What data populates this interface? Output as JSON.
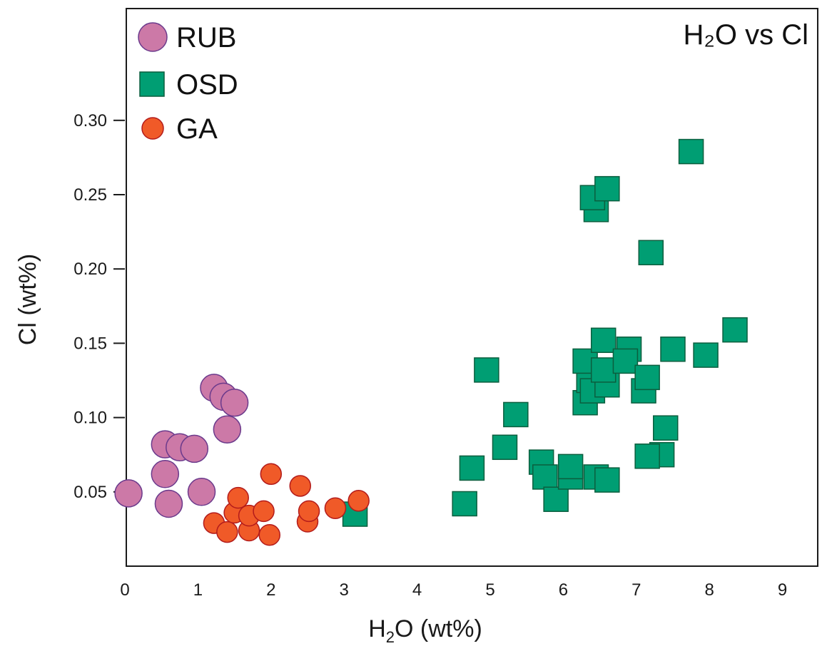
{
  "chart_data": {
    "type": "scatter",
    "title": "H₂O vs Cl",
    "xlabel_main": "H",
    "xlabel_sub": "2",
    "xlabel_rest": "O (wt%)",
    "ylabel": "Cl (wt%)",
    "xlim": [
      0,
      9.5
    ],
    "ylim": [
      0,
      0.37
    ],
    "xticks": [
      0,
      1,
      2,
      3,
      4,
      5,
      6,
      7,
      8,
      9
    ],
    "xtick_labels": [
      "0",
      "1",
      "2",
      "3",
      "4",
      "5",
      "6",
      "7",
      "8",
      "9"
    ],
    "yticks": [
      0.05,
      0.1,
      0.15,
      0.2,
      0.25,
      0.3
    ],
    "ytick_labels": [
      "0.05",
      "0.10",
      "0.15",
      "0.20",
      "0.25",
      "0.30"
    ],
    "legend_position": "top-left",
    "series": [
      {
        "name": "RUB",
        "marker": "circle",
        "fill": "#cc79a7",
        "stroke": "#6b3a8c",
        "points": [
          [
            0.05,
            0.049
          ],
          [
            0.55,
            0.082
          ],
          [
            0.55,
            0.062
          ],
          [
            0.6,
            0.042
          ],
          [
            0.75,
            0.08
          ],
          [
            0.95,
            0.079
          ],
          [
            1.05,
            0.05
          ],
          [
            1.22,
            0.12
          ],
          [
            1.35,
            0.114
          ],
          [
            1.5,
            0.11
          ],
          [
            1.4,
            0.092
          ]
        ]
      },
      {
        "name": "OSD",
        "marker": "square",
        "fill": "#009e73",
        "stroke": "#0b5e3e",
        "points": [
          [
            3.15,
            0.035
          ],
          [
            4.65,
            0.042
          ],
          [
            4.75,
            0.066
          ],
          [
            4.95,
            0.132
          ],
          [
            5.2,
            0.08
          ],
          [
            5.35,
            0.102
          ],
          [
            5.7,
            0.07
          ],
          [
            5.75,
            0.06
          ],
          [
            5.9,
            0.045
          ],
          [
            6.1,
            0.06
          ],
          [
            6.1,
            0.067
          ],
          [
            6.3,
            0.11
          ],
          [
            6.35,
            0.125
          ],
          [
            6.4,
            0.118
          ],
          [
            6.3,
            0.138
          ],
          [
            6.45,
            0.24
          ],
          [
            6.4,
            0.248
          ],
          [
            6.6,
            0.254
          ],
          [
            6.45,
            0.06
          ],
          [
            6.6,
            0.058
          ],
          [
            6.55,
            0.152
          ],
          [
            6.6,
            0.122
          ],
          [
            6.55,
            0.132
          ],
          [
            6.9,
            0.146
          ],
          [
            6.85,
            0.138
          ],
          [
            7.1,
            0.118
          ],
          [
            7.15,
            0.127
          ],
          [
            7.2,
            0.211
          ],
          [
            7.35,
            0.075
          ],
          [
            7.15,
            0.074
          ],
          [
            7.4,
            0.093
          ],
          [
            7.5,
            0.146
          ],
          [
            7.75,
            0.279
          ],
          [
            7.95,
            0.142
          ],
          [
            8.35,
            0.159
          ]
        ]
      },
      {
        "name": "GA",
        "marker": "circle",
        "fill": "#f05a28",
        "stroke": "#b31b1b",
        "points": [
          [
            1.22,
            0.029
          ],
          [
            1.4,
            0.023
          ],
          [
            1.5,
            0.036
          ],
          [
            1.55,
            0.046
          ],
          [
            1.7,
            0.024
          ],
          [
            1.7,
            0.034
          ],
          [
            1.9,
            0.037
          ],
          [
            1.98,
            0.021
          ],
          [
            2.0,
            0.062
          ],
          [
            2.4,
            0.054
          ],
          [
            2.5,
            0.03
          ],
          [
            2.52,
            0.037
          ],
          [
            2.88,
            0.039
          ],
          [
            3.2,
            0.044
          ]
        ]
      }
    ]
  }
}
